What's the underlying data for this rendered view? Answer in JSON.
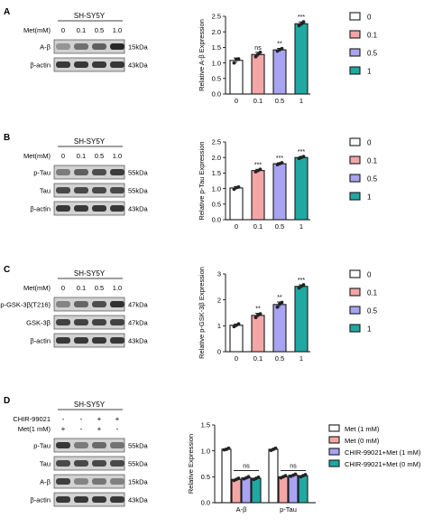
{
  "panels": [
    {
      "letter": "A",
      "cell_line": "SH-SY5Y",
      "treatment_label": "Met(mM)",
      "lane_labels": [
        "0",
        "0.1",
        "0.5",
        "1.0"
      ],
      "blots": [
        {
          "name": "A-β",
          "kda": "15kDa",
          "intensities": [
            0.3,
            0.52,
            0.62,
            0.95
          ]
        },
        {
          "name": "β-actin",
          "kda": "43kDa",
          "intensities": [
            0.85,
            0.85,
            0.85,
            0.85
          ]
        }
      ],
      "chart_data": {
        "type": "bar",
        "categories": [
          "0",
          "0.1",
          "0.5",
          "1"
        ],
        "values": [
          1.08,
          1.27,
          1.42,
          2.26
        ],
        "errors": [
          0.08,
          0.07,
          0.05,
          0.06
        ],
        "points": [
          [
            1.0,
            1.12,
            1.13
          ],
          [
            1.2,
            1.28,
            1.34
          ],
          [
            1.38,
            1.42,
            1.46
          ],
          [
            2.2,
            2.25,
            2.32
          ]
        ],
        "significance": [
          "",
          "ns",
          "**",
          "***"
        ],
        "ylabel": "Relative A-β  Expression",
        "ylim": [
          0,
          2.5
        ],
        "yticks": [
          "0.0",
          "0.5",
          "1.0",
          "1.5",
          "2.0",
          "2.5"
        ],
        "legend": [
          "0",
          "0.1",
          "0.5",
          "1"
        ],
        "legend_position": "right"
      }
    },
    {
      "letter": "B",
      "cell_line": "SH-SY5Y",
      "treatment_label": "Met(mM)",
      "lane_labels": [
        "0",
        "0.1",
        "0.5",
        "1.0"
      ],
      "blots": [
        {
          "name": "p-Tau",
          "kda": "55kDa",
          "intensities": [
            0.45,
            0.62,
            0.72,
            0.82
          ]
        },
        {
          "name": "Tau",
          "kda": "55kDa",
          "intensities": [
            0.75,
            0.75,
            0.75,
            0.75
          ]
        },
        {
          "name": "β-actin",
          "kda": "43kDa",
          "intensities": [
            0.85,
            0.85,
            0.85,
            0.85
          ]
        }
      ],
      "chart_data": {
        "type": "bar",
        "categories": [
          "0",
          "0.1",
          "0.5",
          "1"
        ],
        "values": [
          1.02,
          1.58,
          1.8,
          2.0
        ],
        "errors": [
          0.04,
          0.04,
          0.03,
          0.03
        ],
        "points": [
          [
            0.98,
            1.03,
            1.05
          ],
          [
            1.54,
            1.58,
            1.62
          ],
          [
            1.77,
            1.8,
            1.83
          ],
          [
            1.97,
            2.0,
            2.03
          ]
        ],
        "significance": [
          "",
          "***",
          "***",
          "***"
        ],
        "ylabel": "Relative p-Tau  Expression",
        "ylim": [
          0,
          2.5
        ],
        "yticks": [
          "0.0",
          "0.5",
          "1.0",
          "1.5",
          "2.0",
          "2.5"
        ],
        "legend": [
          "0",
          "0.1",
          "0.5",
          "1"
        ],
        "legend_position": "right"
      }
    },
    {
      "letter": "C",
      "cell_line": "SH-SY5Y",
      "treatment_label": "Met(mM)",
      "lane_labels": [
        "0",
        "0.1",
        "0.5",
        "1.0"
      ],
      "blots": [
        {
          "name": "p-GSK-3β(T216)",
          "kda": "47kDa",
          "intensities": [
            0.4,
            0.58,
            0.72,
            0.88
          ]
        },
        {
          "name": "GSK-3β",
          "kda": "47kDa",
          "intensities": [
            0.78,
            0.78,
            0.78,
            0.78
          ]
        },
        {
          "name": "β-actin",
          "kda": "43kDa",
          "intensities": [
            0.85,
            0.85,
            0.85,
            0.85
          ]
        }
      ],
      "chart_data": {
        "type": "bar",
        "categories": [
          "0",
          "0.1",
          "0.5",
          "1"
        ],
        "values": [
          1.02,
          1.4,
          1.82,
          2.52
        ],
        "errors": [
          0.05,
          0.08,
          0.1,
          0.06
        ],
        "points": [
          [
            0.97,
            1.02,
            1.07
          ],
          [
            1.32,
            1.42,
            1.46
          ],
          [
            1.72,
            1.84,
            1.9
          ],
          [
            2.46,
            2.52,
            2.58
          ]
        ],
        "significance": [
          "",
          "**",
          "**",
          "***"
        ],
        "ylabel": "Relative p-GSK-3β  Expression",
        "ylim": [
          0,
          3
        ],
        "yticks": [
          "0",
          "1",
          "2",
          "3"
        ],
        "legend": [
          "0",
          "0.1",
          "0.5",
          "1"
        ],
        "legend_position": "right"
      }
    },
    {
      "letter": "D",
      "cell_line": "SH-SY5Y",
      "treatment_rows": [
        {
          "label": "CHIR-99021",
          "values": [
            "-",
            "-",
            "+",
            "+"
          ]
        },
        {
          "label": "Met(1 mM)",
          "values": [
            "+",
            "-",
            "+",
            "-"
          ]
        }
      ],
      "blots": [
        {
          "name": "p-Tau",
          "kda": "55kDa",
          "intensities": [
            0.85,
            0.45,
            0.55,
            0.5
          ]
        },
        {
          "name": "Tau",
          "kda": "55kDa",
          "intensities": [
            0.75,
            0.75,
            0.75,
            0.75
          ]
        },
        {
          "name": "A-β",
          "kda": "15kDa",
          "intensities": [
            0.8,
            0.4,
            0.48,
            0.42
          ]
        },
        {
          "name": "β-actin",
          "kda": "43kDa",
          "intensities": [
            0.85,
            0.85,
            0.85,
            0.85
          ]
        }
      ],
      "chart_data": {
        "type": "bar",
        "categories": [
          "A-β",
          "p-Tau"
        ],
        "series": [
          {
            "name": "Met (1 mM)",
            "values": [
              1.03,
              1.03
            ],
            "points": [
              [
                1.02,
                1.03,
                1.05
              ],
              [
                1.01,
                1.03,
                1.05
              ]
            ]
          },
          {
            "name": "Met (0 mM)",
            "values": [
              0.45,
              0.5
            ],
            "points": [
              [
                0.43,
                0.45,
                0.47
              ],
              [
                0.48,
                0.5,
                0.52
              ]
            ]
          },
          {
            "name": "CHIR-99021+Met (1 mM)",
            "values": [
              0.48,
              0.53
            ],
            "points": [
              [
                0.46,
                0.48,
                0.5
              ],
              [
                0.51,
                0.53,
                0.55
              ]
            ]
          },
          {
            "name": "CHIR-99021+Met (0 mM)",
            "values": [
              0.47,
              0.52
            ],
            "points": [
              [
                0.45,
                0.47,
                0.49
              ],
              [
                0.5,
                0.52,
                0.54
              ]
            ]
          }
        ],
        "significance": [
          "ns",
          "ns"
        ],
        "ylabel": "Relative  Expression",
        "ylim": [
          0,
          1.5
        ],
        "yticks": [
          "0.0",
          "0.5",
          "1.0",
          "1.5"
        ],
        "legend_position": "right"
      }
    }
  ],
  "colors": {
    "c0": "#ffffff",
    "c1": "#f4a6a6",
    "c2": "#a9a3f2",
    "c3": "#1fa9a2",
    "edge": "#1a1a1a"
  }
}
